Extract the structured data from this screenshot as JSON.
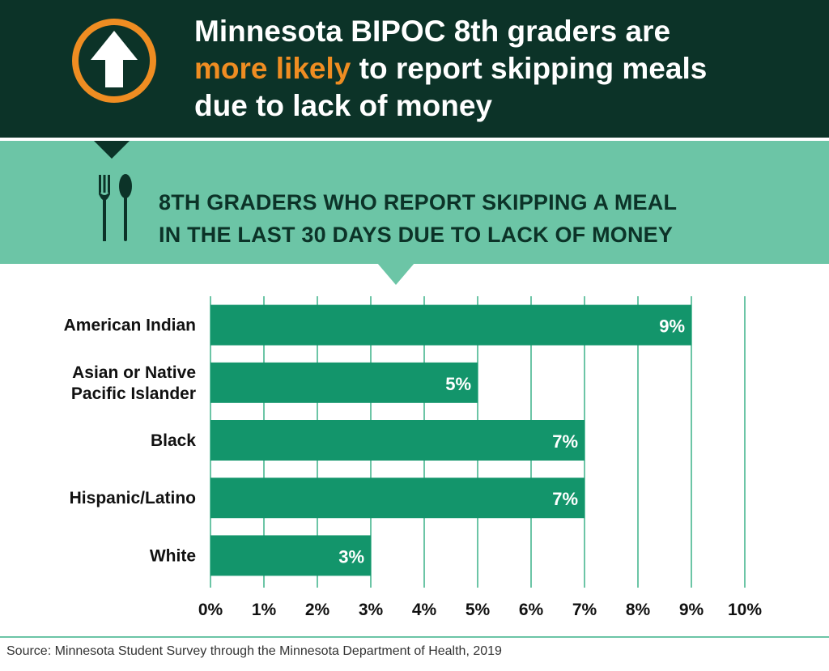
{
  "header": {
    "headline_line1": "Minnesota BIPOC 8th graders are",
    "headline_accent": "more likely",
    "headline_line2_rest": " to report skipping meals",
    "headline_line3": "due to lack of money",
    "icon": "up-arrow-icon"
  },
  "band": {
    "title_line1": "8TH GRADERS WHO REPORT SKIPPING A MEAL",
    "title_line2": "IN THE LAST 30 DAYS DUE TO LACK OF MONEY",
    "icon": "fork-and-spoon-icon"
  },
  "colors": {
    "header_bg": "#0c3328",
    "accent": "#ef8d22",
    "band_bg": "#6cc5a6",
    "bar": "#13956b",
    "grid": "#6cc5a6"
  },
  "chart_data": {
    "type": "bar",
    "orientation": "horizontal",
    "categories": [
      [
        "American Indian"
      ],
      [
        "Asian or Native",
        "Pacific Islander"
      ],
      [
        "Black"
      ],
      [
        "Hispanic/Latino"
      ],
      [
        "White"
      ]
    ],
    "values": [
      9,
      5,
      7,
      7,
      3
    ],
    "value_labels": [
      "9%",
      "5%",
      "7%",
      "7%",
      "3%"
    ],
    "xlim": [
      0,
      10
    ],
    "x_ticks": [
      "0%",
      "1%",
      "2%",
      "3%",
      "4%",
      "5%",
      "6%",
      "7%",
      "8%",
      "9%",
      "10%"
    ],
    "grid": true,
    "legend": "none"
  },
  "source": "Source: Minnesota Student Survey through the Minnesota Department of Health, 2019"
}
